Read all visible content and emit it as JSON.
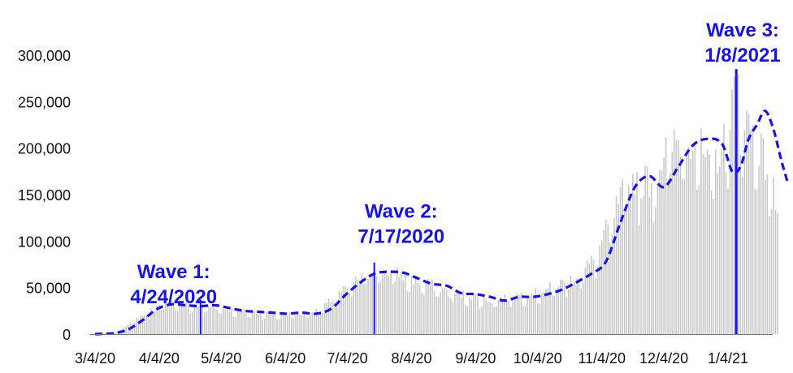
{
  "chart_data": {
    "type": "bar",
    "title": "",
    "xlabel": "",
    "ylabel": "",
    "ylim": [
      0,
      300000
    ],
    "y_ticks": [
      0,
      50000,
      100000,
      150000,
      200000,
      250000,
      300000
    ],
    "y_tick_labels": [
      "0",
      "50,000",
      "100,000",
      "150,000",
      "200,000",
      "250,000",
      "300,000"
    ],
    "x_range": [
      "2020-03-04",
      "2021-01-28"
    ],
    "x_ticks": [
      "2020-03-04",
      "2020-04-04",
      "2020-05-04",
      "2020-06-04",
      "2020-07-04",
      "2020-08-04",
      "2020-09-04",
      "2020-10-04",
      "2020-11-04",
      "2020-12-04",
      "2021-01-04"
    ],
    "x_tick_labels": [
      "3/4/20",
      "4/4/20",
      "5/4/20",
      "6/4/20",
      "7/4/20",
      "8/4/20",
      "9/4/20",
      "10/4/20",
      "11/4/20",
      "12/4/20",
      "1/4/21"
    ],
    "grid": false,
    "series": [
      {
        "style": "bar",
        "color": "#c8c8c8",
        "keypoints": [
          [
            "2020-03-04",
            300
          ],
          [
            "2020-03-14",
            2500
          ],
          [
            "2020-03-21",
            12000
          ],
          [
            "2020-03-28",
            22000
          ],
          [
            "2020-04-04",
            30000
          ],
          [
            "2020-04-11",
            33000
          ],
          [
            "2020-04-18",
            31000
          ],
          [
            "2020-04-25",
            31000
          ],
          [
            "2020-05-02",
            29000
          ],
          [
            "2020-05-09",
            26000
          ],
          [
            "2020-05-16",
            24000
          ],
          [
            "2020-05-23",
            23000
          ],
          [
            "2020-05-30",
            22000
          ],
          [
            "2020-06-06",
            22000
          ],
          [
            "2020-06-13",
            22000
          ],
          [
            "2020-06-20",
            25000
          ],
          [
            "2020-06-27",
            38000
          ],
          [
            "2020-07-04",
            50000
          ],
          [
            "2020-07-11",
            62000
          ],
          [
            "2020-07-18",
            68000
          ],
          [
            "2020-07-25",
            67000
          ],
          [
            "2020-08-01",
            63000
          ],
          [
            "2020-08-08",
            56000
          ],
          [
            "2020-08-15",
            52000
          ],
          [
            "2020-08-22",
            45000
          ],
          [
            "2020-08-29",
            43000
          ],
          [
            "2020-09-05",
            40000
          ],
          [
            "2020-09-12",
            36000
          ],
          [
            "2020-09-19",
            40000
          ],
          [
            "2020-09-26",
            43000
          ],
          [
            "2020-10-03",
            44000
          ],
          [
            "2020-10-10",
            50000
          ],
          [
            "2020-10-17",
            56000
          ],
          [
            "2020-10-24",
            64000
          ],
          [
            "2020-10-31",
            80000
          ],
          [
            "2020-11-07",
            115000
          ],
          [
            "2020-11-14",
            150000
          ],
          [
            "2020-11-21",
            170000
          ],
          [
            "2020-11-28",
            165000
          ],
          [
            "2020-12-05",
            198000
          ],
          [
            "2020-12-12",
            210000
          ],
          [
            "2020-12-19",
            215000
          ],
          [
            "2020-12-26",
            175000
          ],
          [
            "2021-01-02",
            205000
          ],
          [
            "2021-01-08",
            270000
          ],
          [
            "2021-01-12",
            235000
          ],
          [
            "2021-01-19",
            205000
          ],
          [
            "2021-01-28",
            140000
          ]
        ]
      },
      {
        "style": "dashed-line",
        "color": "#1414e6",
        "points": [
          [
            "2020-03-04",
            0
          ],
          [
            "2020-03-13",
            1000
          ],
          [
            "2020-03-20",
            5000
          ],
          [
            "2020-03-27",
            15000
          ],
          [
            "2020-04-03",
            27000
          ],
          [
            "2020-04-10",
            32000
          ],
          [
            "2020-04-17",
            31000
          ],
          [
            "2020-04-24",
            30000
          ],
          [
            "2020-05-01",
            31000
          ],
          [
            "2020-05-08",
            28000
          ],
          [
            "2020-05-15",
            25000
          ],
          [
            "2020-05-22",
            24000
          ],
          [
            "2020-05-29",
            23000
          ],
          [
            "2020-06-05",
            22000
          ],
          [
            "2020-06-12",
            23000
          ],
          [
            "2020-06-19",
            22000
          ],
          [
            "2020-06-26",
            27000
          ],
          [
            "2020-07-03",
            42000
          ],
          [
            "2020-07-10",
            55000
          ],
          [
            "2020-07-17",
            65000
          ],
          [
            "2020-07-24",
            67000
          ],
          [
            "2020-07-31",
            66000
          ],
          [
            "2020-08-07",
            60000
          ],
          [
            "2020-08-14",
            54000
          ],
          [
            "2020-08-21",
            52000
          ],
          [
            "2020-08-28",
            44000
          ],
          [
            "2020-09-04",
            43000
          ],
          [
            "2020-09-11",
            40000
          ],
          [
            "2020-09-18",
            36000
          ],
          [
            "2020-09-25",
            40000
          ],
          [
            "2020-10-02",
            40000
          ],
          [
            "2020-10-09",
            43000
          ],
          [
            "2020-10-16",
            48000
          ],
          [
            "2020-10-23",
            56000
          ],
          [
            "2020-10-30",
            65000
          ],
          [
            "2020-11-06",
            78000
          ],
          [
            "2020-11-13",
            120000
          ],
          [
            "2020-11-20",
            158000
          ],
          [
            "2020-11-27",
            170000
          ],
          [
            "2020-12-04",
            158000
          ],
          [
            "2020-12-11",
            180000
          ],
          [
            "2020-12-18",
            203000
          ],
          [
            "2020-12-25",
            210000
          ],
          [
            "2021-01-01",
            205000
          ],
          [
            "2021-01-06",
            175000
          ],
          [
            "2021-01-10",
            180000
          ],
          [
            "2021-01-14",
            210000
          ],
          [
            "2021-01-18",
            225000
          ],
          [
            "2021-01-22",
            240000
          ],
          [
            "2021-01-26",
            220000
          ],
          [
            "2021-01-30",
            185000
          ],
          [
            "2021-02-02",
            162000
          ]
        ]
      }
    ],
    "annotations": [
      {
        "date": "2020-04-24",
        "value": 37000,
        "label_line1": "Wave 1:",
        "label_line2": "4/24/2020",
        "text_x_date": "2020-04-11",
        "text_y_value": 60000
      },
      {
        "date": "2020-07-17",
        "value": 77000,
        "label_line1": "Wave 2:",
        "label_line2": "7/17/2020",
        "text_x_date": "2020-07-30",
        "text_y_value": 125000
      },
      {
        "date": "2021-01-08",
        "value": 285000,
        "label_line1": "Wave 3:",
        "label_line2": "1/8/2021",
        "text_x_date": "2021-01-12",
        "text_y_value": 320000
      }
    ]
  }
}
